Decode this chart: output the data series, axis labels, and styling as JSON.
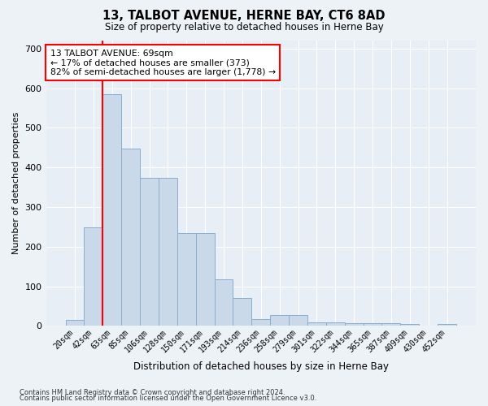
{
  "title": "13, TALBOT AVENUE, HERNE BAY, CT6 8AD",
  "subtitle": "Size of property relative to detached houses in Herne Bay",
  "xlabel": "Distribution of detached houses by size in Herne Bay",
  "ylabel": "Number of detached properties",
  "bar_color": "#c9d9ea",
  "bar_edge_color": "#88aece",
  "background_color": "#edf2f7",
  "plot_bg_color": "#e8eef5",
  "grid_color": "#ffffff",
  "categories": [
    "20sqm",
    "42sqm",
    "63sqm",
    "85sqm",
    "106sqm",
    "128sqm",
    "150sqm",
    "171sqm",
    "193sqm",
    "214sqm",
    "236sqm",
    "258sqm",
    "279sqm",
    "301sqm",
    "322sqm",
    "344sqm",
    "365sqm",
    "387sqm",
    "409sqm",
    "430sqm",
    "452sqm"
  ],
  "values": [
    15,
    248,
    585,
    448,
    373,
    373,
    235,
    235,
    118,
    70,
    18,
    28,
    28,
    10,
    10,
    7,
    7,
    7,
    5,
    0,
    5
  ],
  "red_line_x": 1.5,
  "annotation_text": "13 TALBOT AVENUE: 69sqm\n← 17% of detached houses are smaller (373)\n82% of semi-detached houses are larger (1,778) →",
  "ylim": [
    0,
    720
  ],
  "yticks": [
    0,
    100,
    200,
    300,
    400,
    500,
    600,
    700
  ],
  "footer_line1": "Contains HM Land Registry data © Crown copyright and database right 2024.",
  "footer_line2": "Contains public sector information licensed under the Open Government Licence v3.0."
}
